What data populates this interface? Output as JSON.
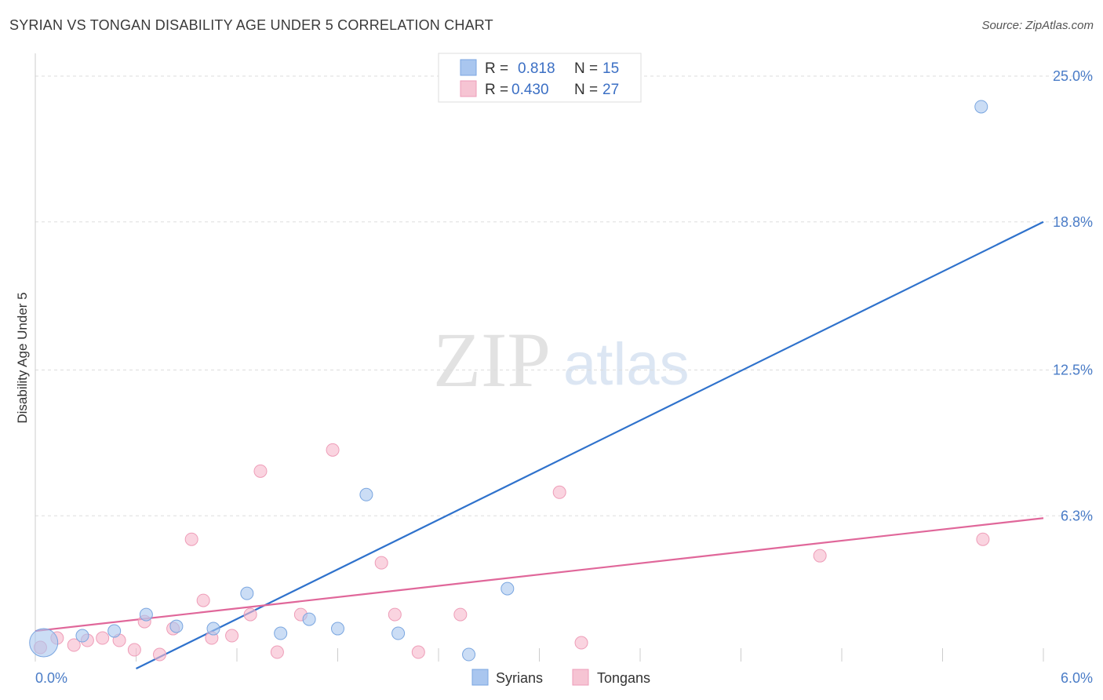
{
  "title": "SYRIAN VS TONGAN DISABILITY AGE UNDER 5 CORRELATION CHART",
  "source": "Source: ZipAtlas.com",
  "watermark": {
    "zip": "ZIP",
    "atlas": "atlas"
  },
  "legend": {
    "rows": [
      {
        "r_label": "R = ",
        "r_value": "0.818",
        "n_label": "N = ",
        "n_value": "15",
        "color": "#a9c6ef"
      },
      {
        "r_label": "R = ",
        "r_value": "0.430",
        "n_label": "N = ",
        "n_value": "27",
        "color": "#f6b8cb"
      }
    ]
  },
  "bottom_legend": {
    "syrians": "Syrians",
    "tongans": "Tongans"
  },
  "colors": {
    "syrian_fill": "#a9c6ef",
    "syrian_line": "#2f72cc",
    "tongan_fill": "#f6b8cb",
    "tongan_line": "#e0679a",
    "tick_text": "#4a7cc7",
    "grid": "#dddddd"
  },
  "chart_data": {
    "type": "scatter",
    "title": "SYRIAN VS TONGAN DISABILITY AGE UNDER 5 CORRELATION CHART",
    "xlabel": "",
    "ylabel": "Disability Age Under 5",
    "xlim": [
      0,
      6.0
    ],
    "ylim": [
      0,
      25.0
    ],
    "x_tick_labels": [
      "0.0%",
      "6.0%"
    ],
    "y_ticks": [
      6.3,
      12.5,
      18.8,
      25.0
    ],
    "y_tick_labels": [
      "6.3%",
      "12.5%",
      "18.8%",
      "25.0%"
    ],
    "grid": true,
    "legend_position": "top-center",
    "series": [
      {
        "name": "Syrians",
        "points": [
          {
            "x": 0.05,
            "y": 0.9,
            "big": true
          },
          {
            "x": 0.28,
            "y": 1.2
          },
          {
            "x": 0.47,
            "y": 1.4
          },
          {
            "x": 0.66,
            "y": 2.1
          },
          {
            "x": 0.84,
            "y": 1.6
          },
          {
            "x": 1.06,
            "y": 1.5
          },
          {
            "x": 1.26,
            "y": 3.0
          },
          {
            "x": 1.46,
            "y": 1.3
          },
          {
            "x": 1.63,
            "y": 1.9
          },
          {
            "x": 1.8,
            "y": 1.5
          },
          {
            "x": 1.97,
            "y": 7.2
          },
          {
            "x": 2.16,
            "y": 1.3
          },
          {
            "x": 2.58,
            "y": 0.4
          },
          {
            "x": 2.81,
            "y": 3.2
          },
          {
            "x": 5.63,
            "y": 23.7
          }
        ],
        "trend": {
          "x1": 0.6,
          "y1": -0.2,
          "x2": 6.0,
          "y2": 18.8
        }
      },
      {
        "name": "Tongans",
        "points": [
          {
            "x": 0.03,
            "y": 0.7
          },
          {
            "x": 0.13,
            "y": 1.1
          },
          {
            "x": 0.23,
            "y": 0.8
          },
          {
            "x": 0.31,
            "y": 1.0
          },
          {
            "x": 0.4,
            "y": 1.1
          },
          {
            "x": 0.5,
            "y": 1.0
          },
          {
            "x": 0.59,
            "y": 0.6
          },
          {
            "x": 0.65,
            "y": 1.8
          },
          {
            "x": 0.74,
            "y": 0.4
          },
          {
            "x": 0.82,
            "y": 1.5
          },
          {
            "x": 0.93,
            "y": 5.3
          },
          {
            "x": 1.0,
            "y": 2.7
          },
          {
            "x": 1.05,
            "y": 1.1
          },
          {
            "x": 1.17,
            "y": 1.2
          },
          {
            "x": 1.28,
            "y": 2.1
          },
          {
            "x": 1.34,
            "y": 8.2
          },
          {
            "x": 1.44,
            "y": 0.5
          },
          {
            "x": 1.58,
            "y": 2.1
          },
          {
            "x": 1.77,
            "y": 9.1
          },
          {
            "x": 2.06,
            "y": 4.3
          },
          {
            "x": 2.14,
            "y": 2.1
          },
          {
            "x": 2.28,
            "y": 0.5
          },
          {
            "x": 2.53,
            "y": 2.1
          },
          {
            "x": 3.12,
            "y": 7.3
          },
          {
            "x": 3.25,
            "y": 0.9
          },
          {
            "x": 4.67,
            "y": 4.6
          },
          {
            "x": 5.64,
            "y": 5.3
          }
        ],
        "trend": {
          "x1": 0.0,
          "y1": 1.4,
          "x2": 6.0,
          "y2": 6.2
        }
      }
    ]
  }
}
